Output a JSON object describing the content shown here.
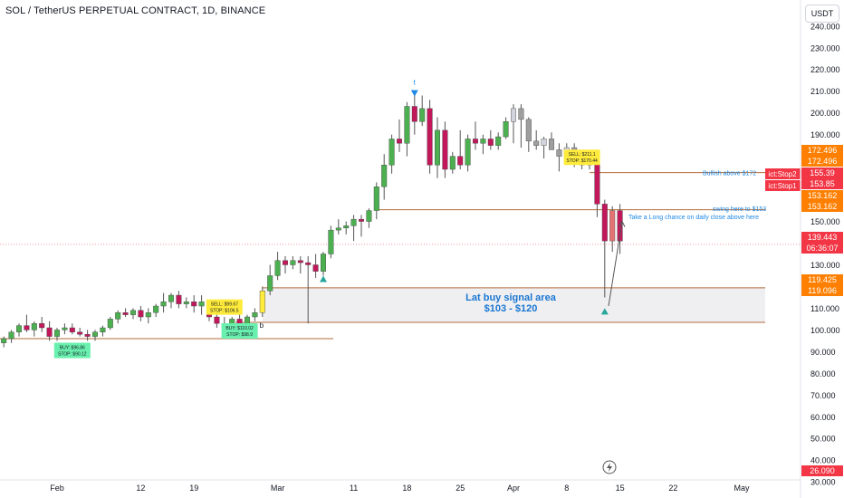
{
  "header": {
    "title": "SOL / TetherUS PERPETUAL CONTRACT, 1D, BINANCE",
    "currency_button": "USDT"
  },
  "chart_data": {
    "type": "candlestick",
    "ylim": [
      33,
      242
    ],
    "y_ticks": [
      "240.000",
      "230.000",
      "220.000",
      "210.000",
      "200.000",
      "190.000",
      "180.000",
      "170.000",
      "160.000",
      "150.000",
      "140.000",
      "130.000",
      "120.000",
      "110.000",
      "100.000",
      "90.000",
      "80.000",
      "70.000",
      "60.000",
      "50.000",
      "40.000",
      "30.000"
    ],
    "x_tick_labels": [
      "Feb",
      "12",
      "19",
      "Mar",
      "11",
      "18",
      "25",
      "Apr",
      "8",
      "15",
      "22",
      "May"
    ],
    "x_tick_dates": [
      "2024-02-01",
      "2024-02-12",
      "2024-02-19",
      "2024-03-01",
      "2024-03-11",
      "2024-03-18",
      "2024-03-25",
      "2024-04-01",
      "2024-04-08",
      "2024-04-15",
      "2024-04-22",
      "2024-05-01"
    ],
    "candles": [
      {
        "date": "2024-01-22",
        "open": 90,
        "high": 92,
        "low": 87,
        "close": 88
      },
      {
        "date": "2024-01-23",
        "open": 88,
        "high": 93,
        "low": 86,
        "close": 92
      },
      {
        "date": "2024-01-24",
        "open": 92,
        "high": 95,
        "low": 90,
        "close": 94
      },
      {
        "date": "2024-01-25",
        "open": 94,
        "high": 97,
        "low": 92,
        "close": 96
      },
      {
        "date": "2024-01-26",
        "open": 96,
        "high": 100,
        "low": 94,
        "close": 99
      },
      {
        "date": "2024-01-27",
        "open": 99,
        "high": 103,
        "low": 97,
        "close": 102
      },
      {
        "date": "2024-01-28",
        "open": 102,
        "high": 107,
        "low": 99,
        "close": 100
      },
      {
        "date": "2024-01-29",
        "open": 100,
        "high": 104,
        "low": 97,
        "close": 103
      },
      {
        "date": "2024-01-30",
        "open": 103,
        "high": 106,
        "low": 99,
        "close": 101
      },
      {
        "date": "2024-01-31",
        "open": 101,
        "high": 104,
        "low": 95,
        "close": 97
      },
      {
        "date": "2024-02-01",
        "open": 97,
        "high": 101,
        "low": 95,
        "close": 100
      },
      {
        "date": "2024-02-02",
        "open": 100,
        "high": 103,
        "low": 98,
        "close": 101
      },
      {
        "date": "2024-02-03",
        "open": 101,
        "high": 103,
        "low": 98,
        "close": 99
      },
      {
        "date": "2024-02-04",
        "open": 99,
        "high": 101,
        "low": 97,
        "close": 98
      },
      {
        "date": "2024-02-05",
        "open": 98,
        "high": 100,
        "low": 95,
        "close": 97
      },
      {
        "date": "2024-02-06",
        "open": 97,
        "high": 100,
        "low": 95,
        "close": 99
      },
      {
        "date": "2024-02-07",
        "open": 99,
        "high": 102,
        "low": 97,
        "close": 101
      },
      {
        "date": "2024-02-08",
        "open": 101,
        "high": 106,
        "low": 100,
        "close": 105
      },
      {
        "date": "2024-02-09",
        "open": 105,
        "high": 109,
        "low": 103,
        "close": 108
      },
      {
        "date": "2024-02-10",
        "open": 108,
        "high": 110,
        "low": 106,
        "close": 107
      },
      {
        "date": "2024-02-11",
        "open": 107,
        "high": 110,
        "low": 105,
        "close": 109
      },
      {
        "date": "2024-02-12",
        "open": 109,
        "high": 111,
        "low": 104,
        "close": 106
      },
      {
        "date": "2024-02-13",
        "open": 106,
        "high": 110,
        "low": 103,
        "close": 108
      },
      {
        "date": "2024-02-14",
        "open": 108,
        "high": 112,
        "low": 106,
        "close": 111
      },
      {
        "date": "2024-02-15",
        "open": 111,
        "high": 117,
        "low": 108,
        "close": 113
      },
      {
        "date": "2024-02-16",
        "open": 113,
        "high": 117,
        "low": 110,
        "close": 116
      },
      {
        "date": "2024-02-17",
        "open": 116,
        "high": 118,
        "low": 110,
        "close": 112
      },
      {
        "date": "2024-02-18",
        "open": 112,
        "high": 115,
        "low": 110,
        "close": 113
      },
      {
        "date": "2024-02-19",
        "open": 113,
        "high": 116,
        "low": 108,
        "close": 111
      },
      {
        "date": "2024-02-20",
        "open": 111,
        "high": 116,
        "low": 107,
        "close": 113
      },
      {
        "date": "2024-02-21",
        "open": 113,
        "high": 114,
        "low": 104,
        "close": 106
      },
      {
        "date": "2024-02-22",
        "open": 106,
        "high": 109,
        "low": 101,
        "close": 103
      },
      {
        "date": "2024-02-23",
        "open": 103,
        "high": 106,
        "low": 99,
        "close": 101
      },
      {
        "date": "2024-02-24",
        "open": 101,
        "high": 106,
        "low": 100,
        "close": 105
      },
      {
        "date": "2024-02-25",
        "open": 105,
        "high": 107,
        "low": 101,
        "close": 103
      },
      {
        "date": "2024-02-26",
        "open": 103,
        "high": 107,
        "low": 101,
        "close": 106
      },
      {
        "date": "2024-02-27",
        "open": 106,
        "high": 110,
        "low": 104,
        "close": 108
      },
      {
        "date": "2024-02-28",
        "open": 108,
        "high": 120,
        "low": 106,
        "close": 118
      },
      {
        "date": "2024-02-29",
        "open": 118,
        "high": 130,
        "low": 116,
        "close": 125
      },
      {
        "date": "2024-03-01",
        "open": 125,
        "high": 136,
        "low": 123,
        "close": 132
      },
      {
        "date": "2024-03-02",
        "open": 132,
        "high": 134,
        "low": 126,
        "close": 130
      },
      {
        "date": "2024-03-03",
        "open": 130,
        "high": 134,
        "low": 128,
        "close": 132
      },
      {
        "date": "2024-03-04",
        "open": 132,
        "high": 134,
        "low": 126,
        "close": 131
      },
      {
        "date": "2024-03-05",
        "open": 131,
        "high": 134,
        "low": 103,
        "close": 130
      },
      {
        "date": "2024-03-06",
        "open": 130,
        "high": 135,
        "low": 124,
        "close": 127
      },
      {
        "date": "2024-03-07",
        "open": 127,
        "high": 136,
        "low": 125,
        "close": 135
      },
      {
        "date": "2024-03-08",
        "open": 135,
        "high": 148,
        "low": 133,
        "close": 146
      },
      {
        "date": "2024-03-09",
        "open": 146,
        "high": 151,
        "low": 144,
        "close": 147
      },
      {
        "date": "2024-03-10",
        "open": 147,
        "high": 150,
        "low": 144,
        "close": 148
      },
      {
        "date": "2024-03-11",
        "open": 148,
        "high": 153,
        "low": 141,
        "close": 151
      },
      {
        "date": "2024-03-12",
        "open": 151,
        "high": 153,
        "low": 143,
        "close": 150
      },
      {
        "date": "2024-03-13",
        "open": 150,
        "high": 156,
        "low": 147,
        "close": 155
      },
      {
        "date": "2024-03-14",
        "open": 155,
        "high": 168,
        "low": 151,
        "close": 166
      },
      {
        "date": "2024-03-15",
        "open": 166,
        "high": 181,
        "low": 160,
        "close": 176
      },
      {
        "date": "2024-03-16",
        "open": 176,
        "high": 190,
        "low": 172,
        "close": 188
      },
      {
        "date": "2024-03-17",
        "open": 188,
        "high": 197,
        "low": 182,
        "close": 186
      },
      {
        "date": "2024-03-18",
        "open": 186,
        "high": 205,
        "low": 180,
        "close": 203
      },
      {
        "date": "2024-03-19",
        "open": 203,
        "high": 210,
        "low": 190,
        "close": 196
      },
      {
        "date": "2024-03-20",
        "open": 196,
        "high": 208,
        "low": 194,
        "close": 202
      },
      {
        "date": "2024-03-21",
        "open": 202,
        "high": 206,
        "low": 172,
        "close": 176
      },
      {
        "date": "2024-03-22",
        "open": 176,
        "high": 198,
        "low": 170,
        "close": 192
      },
      {
        "date": "2024-03-23",
        "open": 192,
        "high": 196,
        "low": 170,
        "close": 174
      },
      {
        "date": "2024-03-24",
        "open": 174,
        "high": 182,
        "low": 172,
        "close": 180
      },
      {
        "date": "2024-03-25",
        "open": 180,
        "high": 192,
        "low": 174,
        "close": 176
      },
      {
        "date": "2024-03-26",
        "open": 176,
        "high": 190,
        "low": 173,
        "close": 188
      },
      {
        "date": "2024-03-27",
        "open": 188,
        "high": 196,
        "low": 183,
        "close": 186
      },
      {
        "date": "2024-03-28",
        "open": 186,
        "high": 190,
        "low": 181,
        "close": 188
      },
      {
        "date": "2024-03-29",
        "open": 188,
        "high": 192,
        "low": 183,
        "close": 185
      },
      {
        "date": "2024-03-30",
        "open": 185,
        "high": 191,
        "low": 183,
        "close": 189
      },
      {
        "date": "2024-03-31",
        "open": 189,
        "high": 198,
        "low": 188,
        "close": 196
      },
      {
        "date": "2024-04-01",
        "open": 196,
        "high": 204,
        "low": 186,
        "close": 202
      },
      {
        "date": "2024-04-02",
        "open": 202,
        "high": 204,
        "low": 184,
        "close": 197
      },
      {
        "date": "2024-04-03",
        "open": 197,
        "high": 198,
        "low": 182,
        "close": 187
      },
      {
        "date": "2024-04-04",
        "open": 187,
        "high": 192,
        "low": 183,
        "close": 185
      },
      {
        "date": "2024-04-05",
        "open": 185,
        "high": 189,
        "low": 179,
        "close": 188
      },
      {
        "date": "2024-04-06",
        "open": 188,
        "high": 191,
        "low": 184,
        "close": 183
      },
      {
        "date": "2024-04-07",
        "open": 183,
        "high": 186,
        "low": 173,
        "close": 180
      },
      {
        "date": "2024-04-08",
        "open": 180,
        "high": 186,
        "low": 176,
        "close": 184
      },
      {
        "date": "2024-04-09",
        "open": 184,
        "high": 186,
        "low": 175,
        "close": 177
      },
      {
        "date": "2024-04-10",
        "open": 177,
        "high": 181,
        "low": 174,
        "close": 176
      },
      {
        "date": "2024-04-11",
        "open": 176,
        "high": 180,
        "low": 174,
        "close": 178
      },
      {
        "date": "2024-04-12",
        "open": 178,
        "high": 180,
        "low": 152,
        "close": 158
      },
      {
        "date": "2024-04-13",
        "open": 158,
        "high": 160,
        "low": 115,
        "close": 141
      },
      {
        "date": "2024-04-14",
        "open": 141,
        "high": 157,
        "low": 136,
        "close": 155
      },
      {
        "date": "2024-04-15",
        "open": 155,
        "high": 158,
        "low": 135,
        "close": 141
      }
    ],
    "price_axis_labels": [
      {
        "text": "172.496",
        "price": 172.496,
        "color": "#ff7f00",
        "text_color": "#ffffff"
      },
      {
        "text": "172.496",
        "price": 172.496,
        "color": "#ff7f00",
        "text_color": "#ffffff",
        "stack": 2
      },
      {
        "text": "155.39",
        "price": 155.39,
        "color": "#f23645",
        "text_color": "#ffffff",
        "stack": 1
      },
      {
        "text": "153.85",
        "price": 153.85,
        "color": "#f23645",
        "text_color": "#ffffff",
        "stack": 2
      },
      {
        "text": "153.162",
        "price": 153.162,
        "color": "#ff7f00",
        "text_color": "#ffffff",
        "stack": 3
      },
      {
        "text": "153.162",
        "price": 153.162,
        "color": "#ff7f00",
        "text_color": "#ffffff",
        "stack": 4
      },
      {
        "text": "139.443",
        "price": 139.443,
        "color": "#f23645",
        "text_color": "#ffffff"
      },
      {
        "text": "06:36:07",
        "price": 139.443,
        "color": "#f23645",
        "text_color": "#ffffff",
        "stack": 1
      },
      {
        "text": "119.425",
        "price": 119.425,
        "color": "#ff7f00",
        "text_color": "#ffffff"
      },
      {
        "text": "119.096",
        "price": 119.096,
        "color": "#ff7f00",
        "text_color": "#ffffff",
        "stack": 1
      },
      {
        "text": "26.090",
        "price": 26.09,
        "color": "#f23645",
        "text_color": "#ffffff"
      }
    ],
    "stop_labels": [
      {
        "text": "ict:Stop2",
        "price": 155.39
      },
      {
        "text": "ict:Stop1",
        "price": 153.85
      }
    ],
    "annotations": {
      "bullish_text": "Bullish above $172",
      "swing_text": "swing here to $153",
      "long_text": "Take a Long chance on daily close above here",
      "zone_title": "Lat buy signal area",
      "zone_range": "$103 - $120",
      "t_label": "t",
      "b_label": "b"
    },
    "signals": [
      {
        "kind": "sell",
        "line1": "SELL: $99.67",
        "line2": "STOP: $106.5"
      },
      {
        "kind": "sell",
        "line1": "SELL: $211.1",
        "line2": "STOP: $170.44"
      },
      {
        "kind": "buy",
        "line1": "BUY: $96.86",
        "line2": "STOP: $90.12"
      },
      {
        "kind": "buy",
        "line1": "BUY: $110.02",
        "line2": "STOP: $98.9"
      }
    ],
    "levels": [
      {
        "name": "bullish-level",
        "price": 172.496
      },
      {
        "name": "stop-level",
        "price": 155.39
      },
      {
        "name": "swing-level",
        "price": 153.162
      },
      {
        "name": "zone-top",
        "price": 119.425
      },
      {
        "name": "zone-bottom",
        "price": 103.5
      }
    ],
    "colors": {
      "up": "#4caf50",
      "up_light": "#b7e4b9",
      "down": "#c2185b",
      "down_red": "#e53950",
      "grey": "#b2b5be",
      "zone": "#fff3e8",
      "zone_text": "#2962ff",
      "line_orange": "#e67e22",
      "line_red": "#c62828",
      "current": "#787b86"
    },
    "grid": false,
    "legend": "none"
  }
}
